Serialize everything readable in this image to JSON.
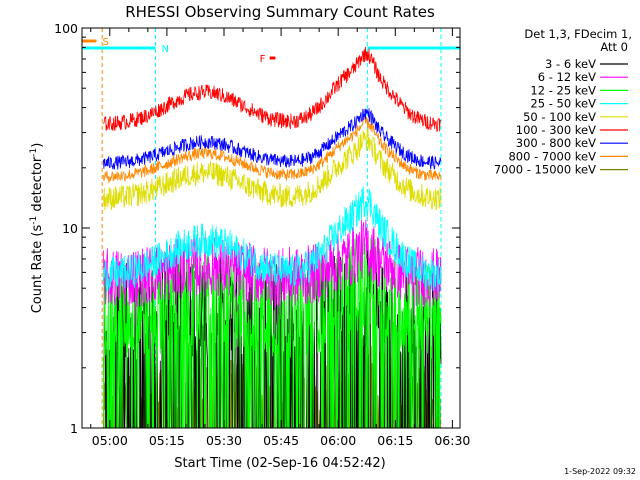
{
  "chart_data": {
    "type": "line",
    "title": "RHESSI Observing Summary Count Rates",
    "xlabel": "Start Time (02-Sep-16 04:52:42)",
    "ylabel_main": "Count Rate (s",
    "ylabel_sup1": "-1",
    "ylabel_mid": " detector",
    "ylabel_sup2": "-1",
    "ylabel_end": ")",
    "x_scale": "time",
    "x_range": [
      "04:52:42",
      "06:32:00"
    ],
    "x_ticks": [
      "05:00",
      "05:15",
      "05:30",
      "05:45",
      "06:00",
      "06:15",
      "06:30"
    ],
    "y_scale": "log",
    "y_range": [
      1,
      100
    ],
    "y_ticks": [
      "1",
      "10",
      "100"
    ],
    "grid": false,
    "legend_position": "right",
    "legend_header": [
      "Det 1,3, FDecim 1,",
      "Att 0"
    ],
    "series": [
      {
        "name": "3 - 6 keV",
        "color": "#000000",
        "base": 3.8,
        "peak": 4.5,
        "noise": 0.6,
        "sparse": 0.55
      },
      {
        "name": "6 - 12 keV",
        "color": "#ff00ff",
        "base": 5.6,
        "peak": 8.0,
        "noise": 0.35,
        "sparse": 0.0
      },
      {
        "name": "12 - 25 keV",
        "color": "#00ff00",
        "base": 3.8,
        "peak": 5.6,
        "noise": 0.55,
        "sparse": 0.25
      },
      {
        "name": "25 - 50 keV",
        "color": "#00ffff",
        "base": 5.8,
        "peak": 14.0,
        "noise": 0.2,
        "sparse": 0.0
      },
      {
        "name": "50 - 100 keV",
        "color": "#dddd00",
        "base": 14.0,
        "peak": 28.0,
        "noise": 0.14,
        "sparse": 0.0
      },
      {
        "name": "100 - 300 keV",
        "color": "#ff0000",
        "base": 33.0,
        "peak": 75.0,
        "noise": 0.09,
        "sparse": 0.0
      },
      {
        "name": "300 - 800 keV",
        "color": "#0000ff",
        "base": 21.0,
        "peak": 38.0,
        "noise": 0.08,
        "sparse": 0.0
      },
      {
        "name": "800 - 7000 keV",
        "color": "#ff8800",
        "base": 18.0,
        "peak": 34.0,
        "noise": 0.07,
        "sparse": 0.0
      },
      {
        "name": "7000 - 15000 keV",
        "color": "#808000",
        "base": 1.5,
        "peak": 2.2,
        "noise": 0.3,
        "sparse": 0.6
      }
    ],
    "flags": [
      {
        "label": "S",
        "color": "#ff8800",
        "start": "04:52:42",
        "end": "04:56:30"
      },
      {
        "label": "N",
        "color": "#00ffff",
        "start": "04:52:42",
        "end": "05:12:00"
      },
      {
        "label": "N",
        "color": "#00ffff",
        "start": "06:07:40",
        "end": "06:32:00"
      },
      {
        "label": "F",
        "color": "#ff0000",
        "start": "05:42:00",
        "end": "05:43:30"
      }
    ],
    "markers": [
      {
        "time": "04:58:00",
        "color": "#ff8800"
      },
      {
        "time": "05:12:00",
        "color": "#00ffff"
      },
      {
        "time": "06:07:40",
        "color": "#00ffff"
      },
      {
        "time": "06:27:00",
        "color": "#00ffff"
      }
    ],
    "timestamp": "1-Sep-2022 09:32"
  }
}
